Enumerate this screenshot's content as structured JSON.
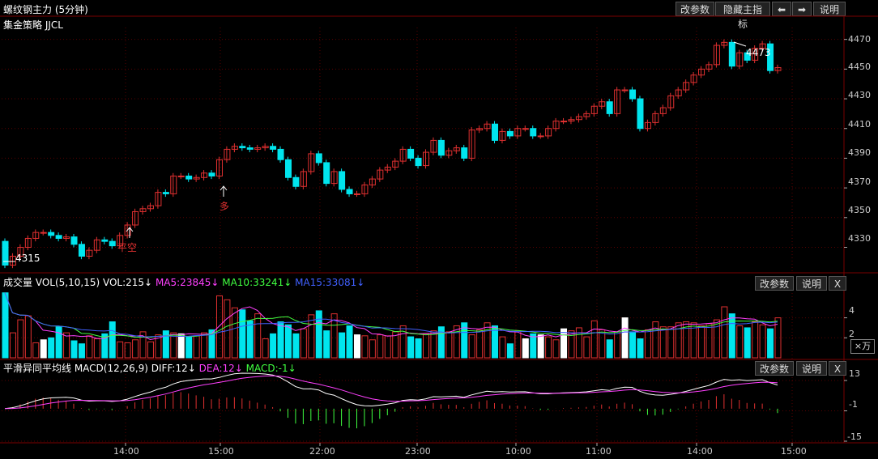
{
  "header": {
    "title": "螺纹钢主力 (5分钟)",
    "buttons": [
      "改参数",
      "隐藏主指标",
      "⬅",
      "➡",
      "说明"
    ]
  },
  "main": {
    "strategy_label": "集金策略 JJCL",
    "price_ticks": [
      "4470",
      "4450",
      "4430",
      "4410",
      "4390",
      "4370",
      "4350",
      "4330"
    ],
    "low_label": "4315",
    "high_label": "4473",
    "signal_pingkong": "平空",
    "signal_duo": "多"
  },
  "volume": {
    "label_prefix": "成交量",
    "vol_label": "VOL(5,10,15)",
    "vol_value": "VOL:215↓",
    "ma5": "MA5:23845↓",
    "ma10": "MA10:33241↓",
    "ma15": "MA15:33081↓",
    "buttons": [
      "改参数",
      "说明",
      "X"
    ],
    "ticks": [
      "4",
      "2"
    ],
    "unit": "×万"
  },
  "macd": {
    "label": "平滑异同平均线 MACD(12,26,9)",
    "diff": "DIFF:12↓",
    "dea": "DEA:12↓",
    "macd": "MACD:-1↓",
    "buttons": [
      "改参数",
      "说明",
      "X"
    ],
    "ticks": [
      "13",
      "-1",
      "-15"
    ]
  },
  "time_axis": [
    "14:00",
    "15:00",
    "22:00",
    "23:00",
    "10:00",
    "11:00",
    "14:00",
    "15:00"
  ],
  "colors": {
    "up": "#e03030",
    "down": "#00e5ee",
    "ma5": "#ff40ff",
    "ma10": "#40ff40",
    "ma15": "#4060ff",
    "grid": "#5a0000"
  },
  "chart_data": [
    {
      "type": "candlestick",
      "title": "螺纹钢主力 (5分钟)",
      "y_ticks": [
        4330,
        4350,
        4370,
        4390,
        4410,
        4430,
        4450,
        4470
      ],
      "open": [
        4334,
        4318,
        4324,
        4330,
        4336,
        4340,
        4340,
        4338,
        4336,
        4337,
        4332,
        4324,
        4328,
        4335,
        4334,
        4331,
        4338,
        4345,
        4354,
        4356,
        4358,
        4367,
        4366,
        4378,
        4378,
        4376,
        4377,
        4380,
        4378,
        4389,
        4396,
        4398,
        4397,
        4396,
        4397,
        4398,
        4396,
        4389,
        4377,
        4371,
        4381,
        4393,
        4387,
        4373,
        4381,
        4369,
        4366,
        4366,
        4372,
        4376,
        4382,
        4384,
        4388,
        4396,
        4390,
        4385,
        4394,
        4402,
        4392,
        4395,
        4397,
        4390,
        4409,
        4410,
        4413,
        4402,
        4408,
        4405,
        4410,
        4410,
        4405,
        4405,
        4410,
        4415,
        4415,
        4416,
        4418,
        4420,
        4425,
        4428,
        4420,
        4436,
        4436,
        4430,
        4410,
        4414,
        4420,
        4424,
        4432,
        4436,
        4441,
        4446,
        4450,
        4453,
        4466,
        4468,
        4452,
        4461,
        4456,
        4464,
        4467,
        4449
      ],
      "close": [
        4318,
        4324,
        4330,
        4336,
        4340,
        4340,
        4338,
        4336,
        4337,
        4332,
        4324,
        4328,
        4335,
        4334,
        4331,
        4338,
        4345,
        4354,
        4356,
        4358,
        4367,
        4366,
        4378,
        4378,
        4376,
        4377,
        4380,
        4378,
        4389,
        4396,
        4398,
        4397,
        4396,
        4397,
        4398,
        4396,
        4389,
        4377,
        4371,
        4381,
        4393,
        4387,
        4373,
        4381,
        4369,
        4366,
        4366,
        4372,
        4376,
        4382,
        4384,
        4388,
        4396,
        4390,
        4385,
        4394,
        4402,
        4392,
        4395,
        4397,
        4390,
        4409,
        4410,
        4413,
        4402,
        4408,
        4405,
        4410,
        4410,
        4405,
        4405,
        4410,
        4415,
        4415,
        4416,
        4418,
        4420,
        4425,
        4428,
        4420,
        4436,
        4436,
        4430,
        4410,
        4414,
        4420,
        4424,
        4432,
        4436,
        4441,
        4446,
        4450,
        4453,
        4466,
        4468,
        4452,
        4461,
        4456,
        4464,
        4467,
        4449,
        4451
      ]
    },
    {
      "type": "bar",
      "title": "成交量 VOL(5,10,15)",
      "y_ticks": [
        2,
        4
      ],
      "values": [
        6.5,
        2.5,
        3.8,
        4.2,
        1.5,
        1.8,
        2.0,
        3.1,
        2.5,
        1.7,
        1.4,
        2.2,
        1.9,
        2.4,
        3.6,
        1.6,
        1.5,
        1.8,
        2.6,
        1.6,
        2.3,
        2.7,
        2.5,
        2.4,
        2.1,
        2.2,
        2.5,
        2.8,
        6.2,
        5.8,
        5.0,
        4.8,
        3.7,
        4.4,
        1.9,
        2.4,
        3.6,
        3.3,
        2.4,
        2.9,
        4.3,
        4.7,
        2.7,
        4.4,
        2.5,
        3.2,
        2.3,
        2.2,
        1.8,
        2.3,
        2.2,
        2.6,
        3.2,
        2.1,
        1.9,
        2.4,
        2.7,
        3.1,
        2.6,
        3.2,
        3.5,
        2.3,
        2.8,
        3.5,
        3.2,
        2.1,
        1.4,
        2.7,
        1.9,
        2.4,
        2.3,
        2.1,
        1.8,
        2.9,
        2.7,
        3.0,
        2.1,
        3.7,
        2.8,
        1.8,
        2.6,
        4.0,
        2.6,
        1.9,
        2.8,
        3.6,
        3.1,
        3.1,
        3.5,
        3.6,
        3.5,
        3.2,
        3.4,
        3.8,
        5.1,
        4.4,
        3.2,
        3.0,
        3.6,
        3.3,
        2.9,
        4.0
      ]
    },
    {
      "type": "line",
      "title": "MACD(12,26,9)",
      "y_ticks": [
        -15,
        -1,
        13
      ]
    }
  ]
}
